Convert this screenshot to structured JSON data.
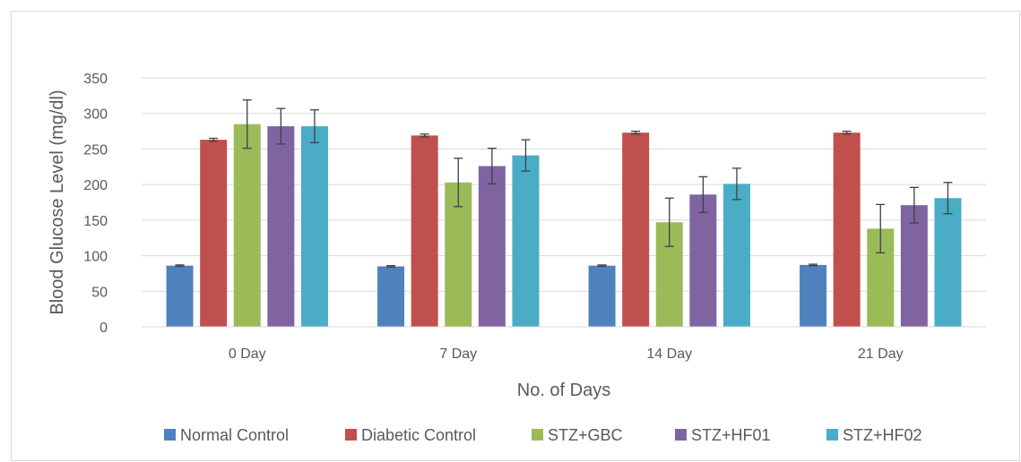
{
  "chart_data": {
    "type": "bar",
    "title": "",
    "xlabel": "No. of Days",
    "ylabel": "Blood Glucose Level (mg/dl)",
    "ylim": [
      0,
      350
    ],
    "yticks": [
      0,
      50,
      100,
      150,
      200,
      250,
      300,
      350
    ],
    "categories": [
      "0 Day",
      "7 Day",
      "14 Day",
      "21 Day"
    ],
    "grid": true,
    "legend_position": "bottom",
    "error_bars": true,
    "series": [
      {
        "name": "Normal Control",
        "color": "#4f81bd",
        "values": [
          86,
          85,
          86,
          87
        ],
        "errors": [
          1,
          1,
          1,
          1
        ]
      },
      {
        "name": "Diabetic Control",
        "color": "#c0504d",
        "values": [
          263,
          269,
          273,
          273
        ],
        "errors": [
          2,
          2,
          2,
          2
        ]
      },
      {
        "name": "STZ+GBC",
        "color": "#9bbb59",
        "values": [
          285,
          203,
          147,
          138
        ],
        "errors": [
          34,
          34,
          34,
          34
        ]
      },
      {
        "name": "STZ+HF01",
        "color": "#8064a2",
        "values": [
          282,
          226,
          186,
          171
        ],
        "errors": [
          25,
          25,
          25,
          25
        ]
      },
      {
        "name": "STZ+HF02",
        "color": "#4bacc6",
        "values": [
          282,
          241,
          201,
          181
        ],
        "errors": [
          23,
          22,
          22,
          22
        ]
      }
    ]
  }
}
